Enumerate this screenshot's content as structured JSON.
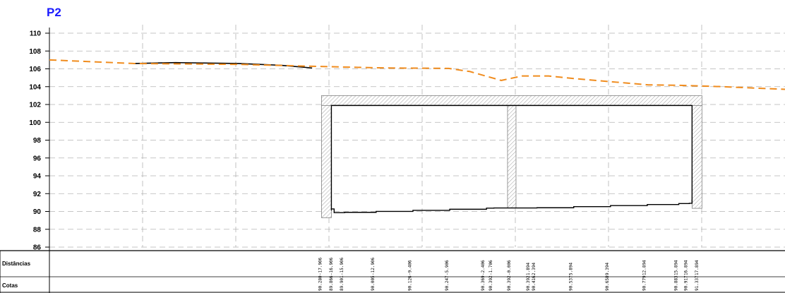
{
  "title": "P2",
  "colors": {
    "title": "#1a1aff",
    "terrain": "#f08c1e",
    "grid": "#b4b4b4",
    "structure_hatch": "#a0a0a0",
    "line": "#000000"
  },
  "chart_data": {
    "type": "line",
    "ylim": [
      86,
      110
    ],
    "yticks": [
      "110",
      "108",
      "106",
      "104",
      "102",
      "100",
      "98",
      "96",
      "94",
      "92",
      "90",
      "88",
      "86"
    ],
    "grid": true,
    "terrain_profile_dashed": [
      [
        -44,
        107.0
      ],
      [
        -36,
        106.6
      ],
      [
        -26,
        106.5
      ],
      [
        -16,
        106.2
      ],
      [
        -12,
        106.1
      ],
      [
        -6,
        106.05
      ],
      [
        -4,
        105.7
      ],
      [
        -1,
        104.7
      ],
      [
        1,
        105.2
      ],
      [
        3.5,
        105.2
      ],
      [
        6,
        104.9
      ],
      [
        10,
        104.5
      ],
      [
        13,
        104.2
      ],
      [
        16,
        104.15
      ],
      [
        20,
        104.0
      ],
      [
        26,
        103.7
      ]
    ],
    "existing_ground_solid": [
      [
        -36,
        106.6
      ],
      [
        -32,
        106.7
      ],
      [
        -26,
        106.6
      ],
      [
        -22,
        106.4
      ],
      [
        -19,
        106.1
      ]
    ],
    "structure": {
      "x_from": -17.906,
      "x_to": 17.894,
      "top_elevation": 103.0,
      "middle_wall_x": 0.0
    }
  },
  "rows": {
    "distancias_label": "Distâncias",
    "cotas_label": "Cotas"
  },
  "stations": [
    {
      "dist": "-17.906",
      "cota": "90.280"
    },
    {
      "dist": "-16.906",
      "cota": "89.866"
    },
    {
      "dist": "-15.906",
      "cota": "89.901"
    },
    {
      "dist": "-12.906",
      "cota": "90.005"
    },
    {
      "dist": "-9.406",
      "cota": "90.126"
    },
    {
      "dist": "-5.906",
      "cota": "90.247"
    },
    {
      "dist": "-2.406",
      "cota": "90.369"
    },
    {
      "dist": "-1.706",
      "cota": "90.392"
    },
    {
      "dist": "-0.006",
      "cota": "90.392"
    },
    {
      "dist": "1.894",
      "cota": "90.392"
    },
    {
      "dist": "2.394",
      "cota": "90.416"
    },
    {
      "dist": "5.894",
      "cota": "90.537"
    },
    {
      "dist": "9.394",
      "cota": "90.658"
    },
    {
      "dist": "12.894",
      "cota": "90.779"
    },
    {
      "dist": "15.894",
      "cota": "90.883"
    },
    {
      "dist": "16.894",
      "cota": "90.917"
    },
    {
      "dist": "17.894",
      "cota": "91.337"
    }
  ]
}
